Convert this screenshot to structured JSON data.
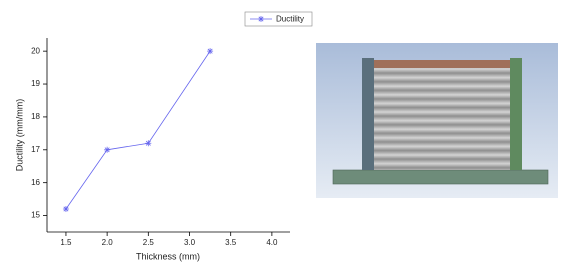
{
  "chart_data": {
    "type": "line",
    "x_label": "Thickness (mm)",
    "y_label": "Ductility (mm/mm)",
    "x": [
      1.5,
      2.0,
      2.5,
      3.25
    ],
    "series": [
      {
        "name": "Ductility",
        "color": "#6666ee",
        "values": [
          15.2,
          17.0,
          17.2,
          20.0
        ]
      }
    ],
    "xlim": [
      1.27,
      4.22
    ],
    "xticks": [
      1.5,
      {
        "value": 2.0,
        "label": "2.0"
      },
      2.5,
      {
        "value": 3.0,
        "label": "3.0"
      },
      3.5,
      {
        "value": 4.0,
        "label": "4.0"
      }
    ],
    "ylim": [
      14.5,
      20.4
    ],
    "yticks": [
      15,
      16,
      17,
      18,
      19,
      20
    ],
    "legend": "top"
  }
}
